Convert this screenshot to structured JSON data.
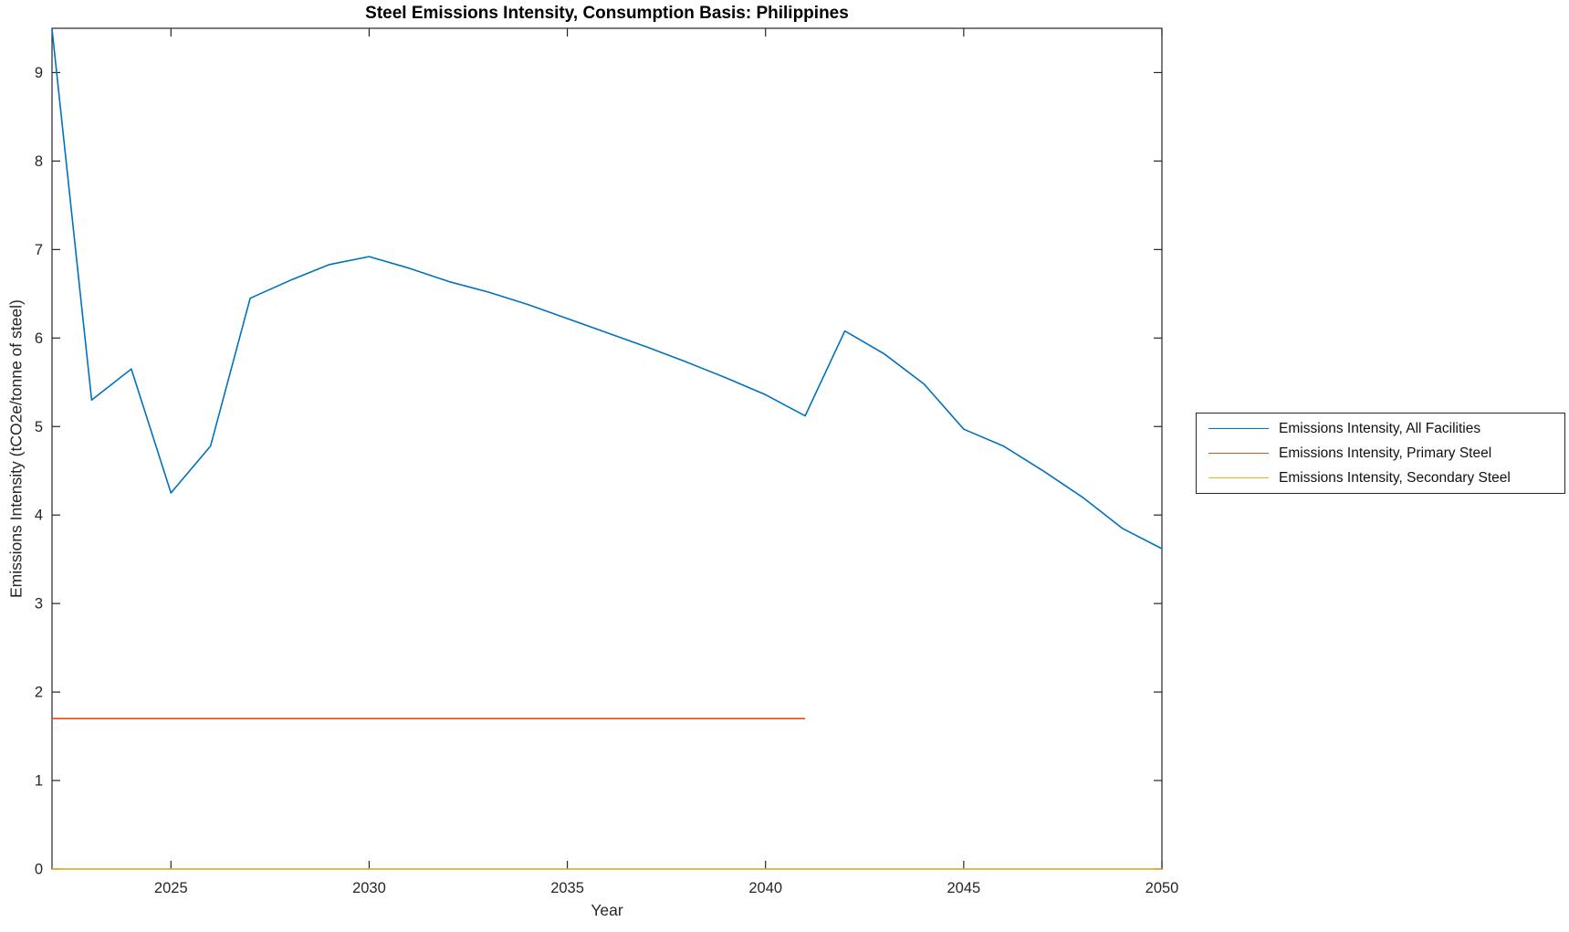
{
  "figure": {
    "title": "Steel Emissions Intensity, Consumption Basis: Philippines",
    "xlabel": "Year",
    "ylabel": "Emissions Intensity (tCO2e/tonne of steel)"
  },
  "legend": {
    "position": "right-outside",
    "border_color": "#262626",
    "entries": [
      {
        "label": "Emissions Intensity, All Facilities",
        "color": "#0072BD"
      },
      {
        "label": "Emissions Intensity, Primary Steel",
        "color": "#D95319"
      },
      {
        "label": "Emissions Intensity, Secondary Steel",
        "color": "#EDB120"
      }
    ]
  },
  "chart_data": {
    "type": "line",
    "title": "Steel Emissions Intensity, Consumption Basis: Philippines",
    "xlabel": "Year",
    "ylabel": "Emissions Intensity (tCO2e/tonne of steel)",
    "xlim": [
      2022,
      2050
    ],
    "ylim": [
      0,
      9.5
    ],
    "xticks": [
      2025,
      2030,
      2035,
      2040,
      2045,
      2050
    ],
    "yticks": [
      0,
      1,
      2,
      3,
      4,
      5,
      6,
      7,
      8,
      9
    ],
    "grid": false,
    "axis_color": "#262626",
    "series": [
      {
        "name": "Emissions Intensity, All Facilities",
        "color": "#0072BD",
        "x": [
          2022,
          2023,
          2024,
          2025,
          2026,
          2027,
          2028,
          2029,
          2030,
          2031,
          2032,
          2033,
          2034,
          2035,
          2036,
          2037,
          2038,
          2039,
          2040,
          2041,
          2042,
          2043,
          2044,
          2045,
          2046,
          2047,
          2048,
          2049,
          2050
        ],
        "values": [
          9.49,
          5.3,
          5.65,
          4.25,
          4.78,
          6.45,
          6.65,
          6.83,
          6.92,
          6.79,
          6.64,
          6.52,
          6.38,
          6.22,
          6.06,
          5.9,
          5.73,
          5.55,
          5.36,
          5.12,
          6.08,
          5.82,
          5.48,
          4.97,
          4.78,
          4.5,
          4.2,
          3.85,
          3.62
        ]
      },
      {
        "name": "Emissions Intensity, Primary Steel",
        "color": "#D95319",
        "x": [
          2022,
          2023,
          2024,
          2025,
          2026,
          2027,
          2028,
          2029,
          2030,
          2031,
          2032,
          2033,
          2034,
          2035,
          2036,
          2037,
          2038,
          2039,
          2040,
          2041
        ],
        "values": [
          1.7,
          1.7,
          1.7,
          1.7,
          1.7,
          1.7,
          1.7,
          1.7,
          1.7,
          1.7,
          1.7,
          1.7,
          1.7,
          1.7,
          1.7,
          1.7,
          1.7,
          1.7,
          1.7,
          1.7
        ]
      },
      {
        "name": "Emissions Intensity, Secondary Steel",
        "color": "#EDB120",
        "x": [
          2022,
          2023,
          2024,
          2025,
          2026,
          2027,
          2028,
          2029,
          2030,
          2031,
          2032,
          2033,
          2034,
          2035,
          2036,
          2037,
          2038,
          2039,
          2040,
          2041,
          2042,
          2043,
          2044,
          2045,
          2046,
          2047,
          2048,
          2049,
          2050
        ],
        "values": [
          0,
          0,
          0,
          0,
          0,
          0,
          0,
          0,
          0,
          0,
          0,
          0,
          0,
          0,
          0,
          0,
          0,
          0,
          0,
          0,
          0,
          0,
          0,
          0,
          0,
          0,
          0,
          0,
          0
        ]
      }
    ]
  }
}
